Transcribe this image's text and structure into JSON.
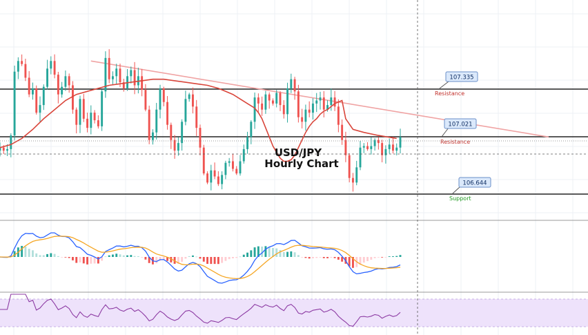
{
  "chart_data": [
    {
      "type": "candlestick",
      "title": "USD/JPY Hourly Chart",
      "levels": [
        {
          "name": "Resistance",
          "value": 107.335,
          "label_color": "#c2302b"
        },
        {
          "name": "Resistance",
          "value": 107.021,
          "label_color": "#c2302b"
        },
        {
          "name": "Support",
          "value": 106.644,
          "label_color": "#1f9a1f"
        }
      ],
      "price_close": [
        106.95,
        106.93,
        106.94,
        107.03,
        107.45,
        107.52,
        107.5,
        107.41,
        107.3,
        107.34,
        107.18,
        107.23,
        107.35,
        107.47,
        107.52,
        107.43,
        107.3,
        107.35,
        107.42,
        107.36,
        107.2,
        107.1,
        107.27,
        107.14,
        107.08,
        107.18,
        107.13,
        107.09,
        107.32,
        107.54,
        107.4,
        107.42,
        107.47,
        107.38,
        107.34,
        107.42,
        107.46,
        107.36,
        107.42,
        107.33,
        107.2,
        107.0,
        107.05,
        107.2,
        107.34,
        107.25,
        107.1,
        107.0,
        106.93,
        106.98,
        107.12,
        107.27,
        107.3,
        107.22,
        107.08,
        106.95,
        106.78,
        106.72,
        106.8,
        106.76,
        106.71,
        106.77,
        106.85,
        106.86,
        106.81,
        106.78,
        106.86,
        106.94,
        107.02,
        107.12,
        107.28,
        107.24,
        107.2,
        107.3,
        107.26,
        107.24,
        107.31,
        107.23,
        107.17,
        107.34,
        107.4,
        107.32,
        107.15,
        107.12,
        107.2,
        107.18,
        107.24,
        107.26,
        107.28,
        107.2,
        107.23,
        107.28,
        107.22,
        107.1,
        107.0,
        106.9,
        106.75,
        106.72,
        106.82,
        106.95,
        106.96,
        106.94,
        106.96,
        107.0,
        106.98,
        106.9,
        106.94,
        106.97,
        106.93,
        106.95,
        107.02
      ],
      "ma_y": [
        106.95,
        106.97,
        107.01,
        107.07,
        107.14,
        107.2,
        107.26,
        107.3,
        107.32,
        107.34,
        107.36,
        107.37,
        107.38,
        107.39,
        107.4,
        107.4,
        107.39,
        107.38,
        107.37,
        107.36,
        107.34,
        107.32,
        107.3,
        107.27,
        107.24,
        107.21,
        107.18,
        107.14,
        107.08,
        107.02,
        106.96,
        106.92,
        106.88,
        106.86,
        106.86,
        106.87,
        106.9,
        106.95,
        107.0,
        107.05,
        107.09,
        107.12,
        107.14,
        107.17,
        107.19,
        107.2,
        107.22,
        107.24,
        107.25,
        107.26,
        107.14,
        107.07,
        107.05,
        107.03,
        107.01
      ],
      "ma_x_index": [
        0,
        3,
        6,
        9,
        12,
        15,
        18,
        21,
        24,
        27,
        30,
        33,
        36,
        39,
        42,
        45,
        48,
        51,
        54,
        57,
        60,
        62,
        64,
        66,
        68,
        70,
        71,
        72,
        73,
        74,
        75,
        76,
        77,
        78,
        79,
        80,
        81,
        82,
        83,
        84,
        85,
        86,
        87,
        88,
        89,
        90,
        91,
        92,
        93,
        94,
        95,
        97,
        100,
        104,
        109
      ],
      "trendline": {
        "from_value": 107.52,
        "to_value": 107.02
      }
    },
    {
      "type": "macd",
      "series": [
        {
          "name": "",
          "color": "#2962ff"
        },
        {
          "name": "",
          "color": "#f5a623"
        }
      ]
    },
    {
      "type": "rsi",
      "band": [
        30,
        70
      ]
    }
  ]
}
